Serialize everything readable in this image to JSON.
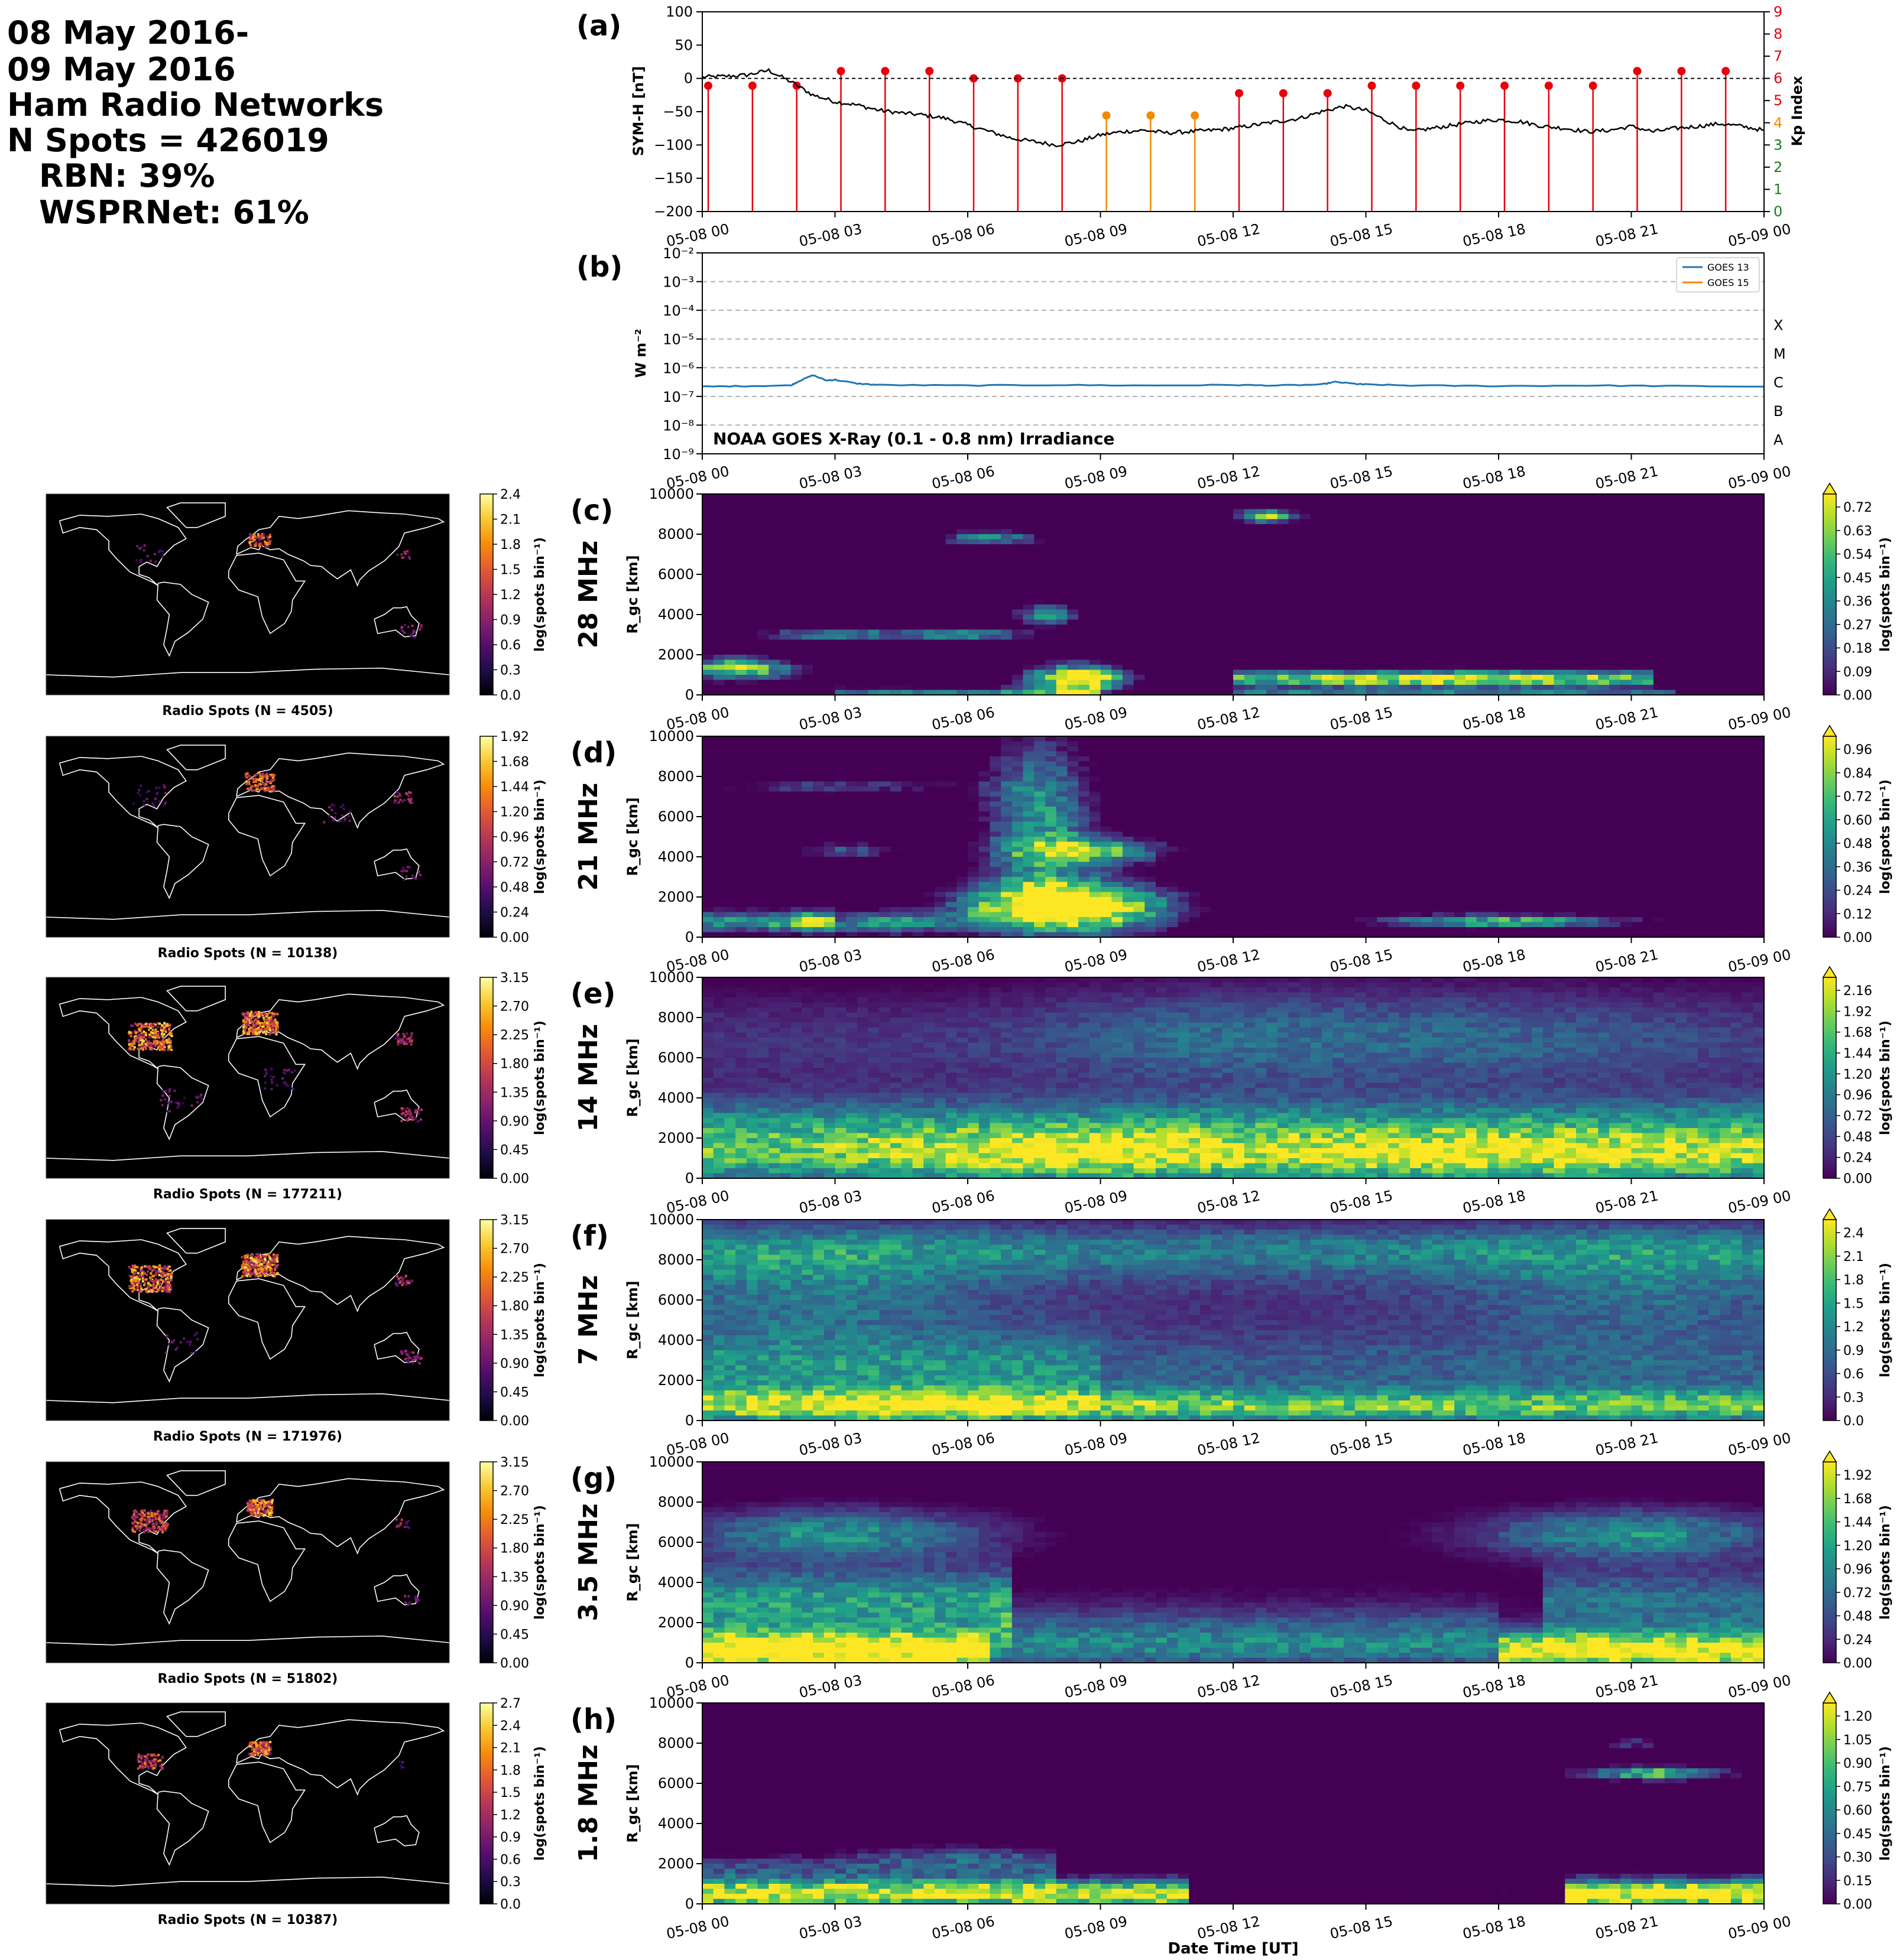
{
  "header": {
    "line1": "08 May 2016-",
    "line2": "09 May 2016",
    "line3": "Ham Radio Networks",
    "line4": "N Spots = 426019",
    "line5": "RBN: 39%",
    "line6": "WSPRNet: 61%"
  },
  "time_ticks": [
    "05-08 00",
    "05-08 03",
    "05-08 06",
    "05-08 09",
    "05-08 12",
    "05-08 15",
    "05-08 18",
    "05-08 21",
    "05-09 00"
  ],
  "xlabel": "Date Time [UT]",
  "colors": {
    "kp_red": "#e8000b",
    "kp_orange": "#f08a00",
    "kp_green": "#1a7f1a",
    "goes13": "#1f77b4",
    "goes15": "#ff7f0e"
  },
  "panel_a": {
    "label": "(a)",
    "ylabel": "SYM-H [nT]",
    "ylabel_right": "Kp Index",
    "yticks": [
      "100",
      "50",
      "0",
      "−50",
      "−100",
      "−150",
      "−200"
    ],
    "kp_ticks": [
      "9",
      "8",
      "7",
      "6",
      "5",
      "4",
      "3",
      "2",
      "1",
      "0"
    ]
  },
  "panel_b": {
    "label": "(b)",
    "ylabel": "W m⁻²",
    "yticks": [
      "10⁻²",
      "10⁻³",
      "10⁻⁴",
      "10⁻⁵",
      "10⁻⁶",
      "10⁻⁷",
      "10⁻⁸",
      "10⁻⁹"
    ],
    "classes": [
      "X",
      "M",
      "C",
      "B",
      "A"
    ],
    "annotation": "NOAA GOES X-Ray (0.1 - 0.8 nm) Irradiance",
    "legend": [
      "GOES 13",
      "GOES 15"
    ]
  },
  "map_colorbar_label": "log(spots bin⁻¹)",
  "rgc_ylabel": "R_gc [km]",
  "rgc_yticks": [
    "10000",
    "8000",
    "6000",
    "4000",
    "2000",
    "0"
  ],
  "bands": [
    {
      "label": "(c)",
      "freq": "28 MHz",
      "map_title": "Radio Spots (N = 4505)",
      "map_ticks": [
        "2.4",
        "2.1",
        "1.8",
        "1.5",
        "1.2",
        "0.9",
        "0.6",
        "0.3",
        "0.0"
      ],
      "cbar_ticks": [
        "0.72",
        "0.63",
        "0.54",
        "0.45",
        "0.36",
        "0.27",
        "0.18",
        "0.09",
        "0.00"
      ]
    },
    {
      "label": "(d)",
      "freq": "21 MHz",
      "map_title": "Radio Spots (N = 10138)",
      "map_ticks": [
        "1.92",
        "1.68",
        "1.44",
        "1.20",
        "0.96",
        "0.72",
        "0.48",
        "0.24",
        "0.00"
      ],
      "cbar_ticks": [
        "0.96",
        "0.84",
        "0.72",
        "0.60",
        "0.48",
        "0.36",
        "0.24",
        "0.12",
        "0.00"
      ]
    },
    {
      "label": "(e)",
      "freq": "14 MHz",
      "map_title": "Radio Spots (N = 177211)",
      "map_ticks": [
        "3.15",
        "2.70",
        "2.25",
        "1.80",
        "1.35",
        "0.90",
        "0.45",
        "0.00"
      ],
      "cbar_ticks": [
        "2.16",
        "1.92",
        "1.68",
        "1.44",
        "1.20",
        "0.96",
        "0.72",
        "0.48",
        "0.24",
        "0.00"
      ]
    },
    {
      "label": "(f)",
      "freq": "7 MHz",
      "map_title": "Radio Spots (N = 171976)",
      "map_ticks": [
        "3.15",
        "2.70",
        "2.25",
        "1.80",
        "1.35",
        "0.90",
        "0.45",
        "0.00"
      ],
      "cbar_ticks": [
        "2.4",
        "2.1",
        "1.8",
        "1.5",
        "1.2",
        "0.9",
        "0.6",
        "0.3",
        "0.0"
      ]
    },
    {
      "label": "(g)",
      "freq": "3.5 MHz",
      "map_title": "Radio Spots (N = 51802)",
      "map_ticks": [
        "3.15",
        "2.70",
        "2.25",
        "1.80",
        "1.35",
        "0.90",
        "0.45",
        "0.00"
      ],
      "cbar_ticks": [
        "1.92",
        "1.68",
        "1.44",
        "1.20",
        "0.96",
        "0.72",
        "0.48",
        "0.24",
        "0.00"
      ]
    },
    {
      "label": "(h)",
      "freq": "1.8 MHz",
      "map_title": "Radio Spots (N = 10387)",
      "map_ticks": [
        "2.7",
        "2.4",
        "2.1",
        "1.8",
        "1.5",
        "1.2",
        "0.9",
        "0.6",
        "0.3",
        "0.0"
      ],
      "cbar_ticks": [
        "1.20",
        "1.05",
        "0.90",
        "0.75",
        "0.60",
        "0.45",
        "0.30",
        "0.15",
        "0.00"
      ]
    }
  ],
  "chart_data": [
    {
      "type": "line",
      "title": "",
      "xlabel": "",
      "ylabel": "SYM-H [nT]",
      "ylim": [
        -200,
        100
      ],
      "x_hours": [
        0,
        0.5,
        1,
        1.5,
        2,
        2.5,
        3,
        3.5,
        4,
        4.5,
        5,
        5.5,
        6,
        6.5,
        7,
        7.5,
        8,
        8.5,
        9,
        9.5,
        10,
        10.5,
        11,
        11.5,
        12,
        12.5,
        13,
        13.5,
        14,
        14.5,
        15,
        15.5,
        16,
        16.5,
        17,
        17.5,
        18,
        18.5,
        19,
        19.5,
        20,
        20.5,
        21,
        21.5,
        22,
        22.5,
        23,
        23.5,
        24
      ],
      "series": [
        {
          "name": "SYM-H",
          "values": [
            2,
            3,
            5,
            12,
            -5,
            -25,
            -35,
            -40,
            -48,
            -52,
            -55,
            -60,
            -70,
            -80,
            -90,
            -95,
            -100,
            -95,
            -85,
            -80,
            -78,
            -82,
            -80,
            -78,
            -75,
            -70,
            -65,
            -60,
            -50,
            -42,
            -48,
            -65,
            -80,
            -75,
            -70,
            -65,
            -62,
            -65,
            -72,
            -75,
            -80,
            -78,
            -72,
            -80,
            -75,
            -72,
            -68,
            -72,
            -78
          ]
        },
        {
          "name": "Kp",
          "axis": "right",
          "x_hours": [
            0,
            1,
            2,
            3,
            4,
            5,
            6,
            7,
            8,
            9,
            10,
            11,
            12,
            13,
            14,
            15,
            16,
            17,
            18,
            19,
            20,
            21,
            22,
            23
          ],
          "values": [
            5.67,
            5.67,
            5.67,
            6.33,
            6.33,
            6.33,
            6.0,
            6.0,
            6.0,
            4.33,
            4.33,
            4.33,
            5.33,
            5.33,
            5.33,
            5.67,
            5.67,
            5.67,
            5.67,
            5.67,
            5.67,
            6.33,
            6.33,
            6.33
          ]
        }
      ],
      "kp_ylim": [
        0,
        9
      ],
      "grid": false
    },
    {
      "type": "line",
      "title": "",
      "ylabel": "W m⁻²",
      "yscale": "log",
      "ylim": [
        1e-09,
        0.01
      ],
      "x_hours": [
        0,
        1,
        2,
        2.2,
        2.5,
        2.8,
        3,
        3.5,
        4,
        6,
        8,
        10,
        12,
        13,
        14,
        14.3,
        14.8,
        15,
        16,
        18,
        20,
        22,
        24
      ],
      "series": [
        {
          "name": "GOES 13",
          "values": [
            2.2e-07,
            2.3e-07,
            2.4e-07,
            3.5e-07,
            5.5e-07,
            3.6e-07,
            3.8e-07,
            2.8e-07,
            2.5e-07,
            2.4e-07,
            2.5e-07,
            2.4e-07,
            2.5e-07,
            2.4e-07,
            2.6e-07,
            3.2e-07,
            2.7e-07,
            2.6e-07,
            2.4e-07,
            2.3e-07,
            2.4e-07,
            2.3e-07,
            2.2e-07
          ]
        }
      ],
      "legend": "top-right"
    },
    {
      "type": "heatmap",
      "title": "",
      "x": "time (05-08 00 to 05-09 00)",
      "ylabel": "R_gc [km]",
      "ylim": [
        0,
        10000
      ],
      "zlim": [
        0,
        0.72
      ]
    },
    {
      "type": "heatmap",
      "title": "",
      "x": "time (05-08 00 to 05-09 00)",
      "ylabel": "R_gc [km]",
      "ylim": [
        0,
        10000
      ],
      "zlim": [
        0,
        0.96
      ]
    },
    {
      "type": "heatmap",
      "title": "",
      "x": "time (05-08 00 to 05-09 00)",
      "ylabel": "R_gc [km]",
      "ylim": [
        0,
        10000
      ],
      "zlim": [
        0,
        2.16
      ]
    },
    {
      "type": "heatmap",
      "title": "",
      "x": "time (05-08 00 to 05-09 00)",
      "ylabel": "R_gc [km]",
      "ylim": [
        0,
        10000
      ],
      "zlim": [
        0,
        2.4
      ]
    },
    {
      "type": "heatmap",
      "title": "",
      "x": "time (05-08 00 to 05-09 00)",
      "ylabel": "R_gc [km]",
      "ylim": [
        0,
        10000
      ],
      "zlim": [
        0,
        1.92
      ]
    },
    {
      "type": "heatmap",
      "title": "",
      "x": "time (05-08 00 to 05-09 00)",
      "ylabel": "R_gc [km]",
      "ylim": [
        0,
        10000
      ],
      "zlim": [
        0,
        1.2
      ]
    }
  ]
}
